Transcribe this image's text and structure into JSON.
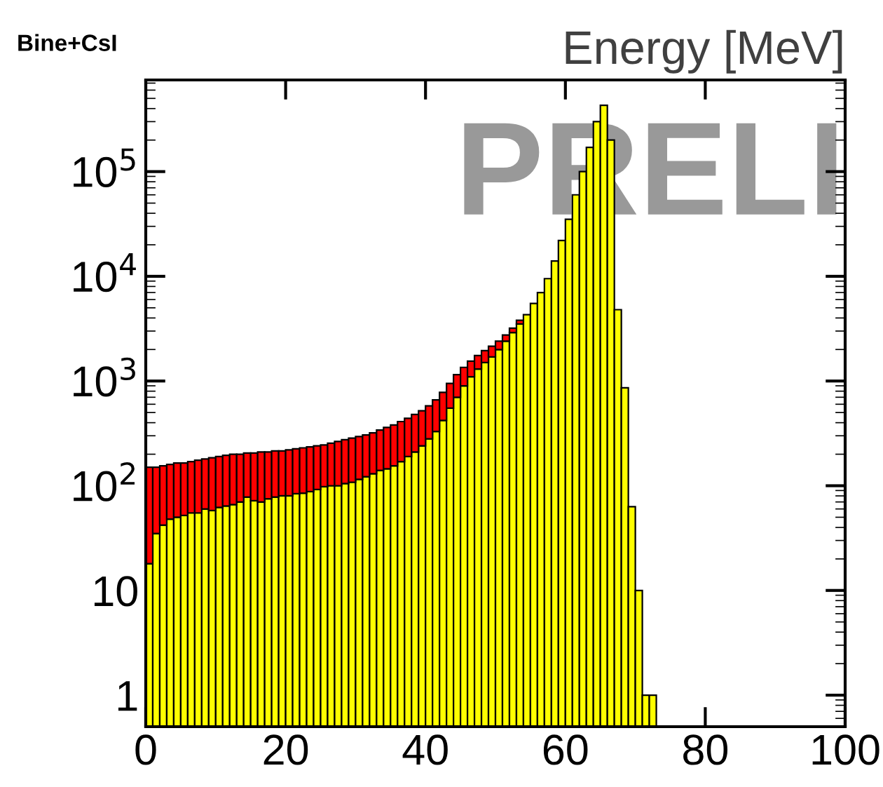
{
  "chart_data": {
    "type": "bar",
    "title": "Bine+CsI",
    "xlabel": "Energy [MeV]",
    "stacked": true,
    "x": [
      0.5,
      1.5,
      2.5,
      3.5,
      4.5,
      5.5,
      6.5,
      7.5,
      8.5,
      9.5,
      10.5,
      11.5,
      12.5,
      13.5,
      14.5,
      15.5,
      16.5,
      17.5,
      18.5,
      19.5,
      20.5,
      21.5,
      22.5,
      23.5,
      24.5,
      25.5,
      26.5,
      27.5,
      28.5,
      29.5,
      30.5,
      31.5,
      32.5,
      33.5,
      34.5,
      35.5,
      36.5,
      37.5,
      38.5,
      39.5,
      40.5,
      41.5,
      42.5,
      43.5,
      44.5,
      45.5,
      46.5,
      47.5,
      48.5,
      49.5,
      50.5,
      51.5,
      52.5,
      53.5,
      54.5,
      55.5,
      56.5,
      57.5,
      58.5,
      59.5,
      60.5,
      61.5,
      62.5,
      63.5,
      64.5,
      65.5,
      66.5,
      67.5,
      68.5,
      69.5,
      70.5,
      71.5,
      72.5
    ],
    "series": [
      {
        "color": "#ffff00",
        "values": [
          18,
          35,
          42,
          48,
          50,
          52,
          55,
          55,
          60,
          58,
          62,
          64,
          66,
          70,
          78,
          72,
          70,
          75,
          78,
          80,
          80,
          84,
          85,
          88,
          92,
          98,
          100,
          100,
          105,
          108,
          115,
          122,
          130,
          140,
          145,
          155,
          170,
          190,
          210,
          240,
          280,
          330,
          420,
          550,
          700,
          900,
          1100,
          1300,
          1500,
          1700,
          2000,
          2400,
          2900,
          3500,
          4300,
          5500,
          7000,
          9500,
          14000,
          22000,
          35000,
          60000,
          100000,
          170000,
          300000,
          430000,
          200000,
          4800,
          860,
          63,
          10,
          1,
          1
        ]
      },
      {
        "color": "#ff0000",
        "values": [
          132,
          115,
          113,
          112,
          115,
          113,
          115,
          120,
          120,
          127,
          128,
          131,
          134,
          130,
          127,
          133,
          140,
          135,
          137,
          135,
          140,
          141,
          145,
          147,
          148,
          147,
          155,
          165,
          170,
          177,
          180,
          183,
          190,
          200,
          215,
          225,
          240,
          250,
          270,
          280,
          300,
          330,
          360,
          400,
          450,
          450,
          450,
          450,
          450,
          450,
          400,
          350,
          300,
          300,
          null,
          null,
          null,
          null,
          null,
          null,
          null,
          null,
          null,
          null,
          null,
          null,
          null,
          null,
          null,
          null,
          null,
          null,
          null
        ]
      }
    ],
    "log": "y",
    "xlim": [
      0,
      100
    ],
    "xticks": [
      0,
      20,
      40,
      60,
      80,
      100
    ],
    "ylim": [
      0.5,
      750000
    ],
    "yticks": [
      1,
      10,
      {
        "value": 100,
        "label": "10$^{2}$"
      },
      {
        "value": 1000,
        "label": "10$^{3}$"
      },
      {
        "value": 10000,
        "label": "10$^{4}$"
      },
      {
        "value": 100000,
        "label": "10$^{5}$"
      }
    ],
    "annotations": [
      "PRELI"
    ],
    "grid": false,
    "legend": false
  }
}
